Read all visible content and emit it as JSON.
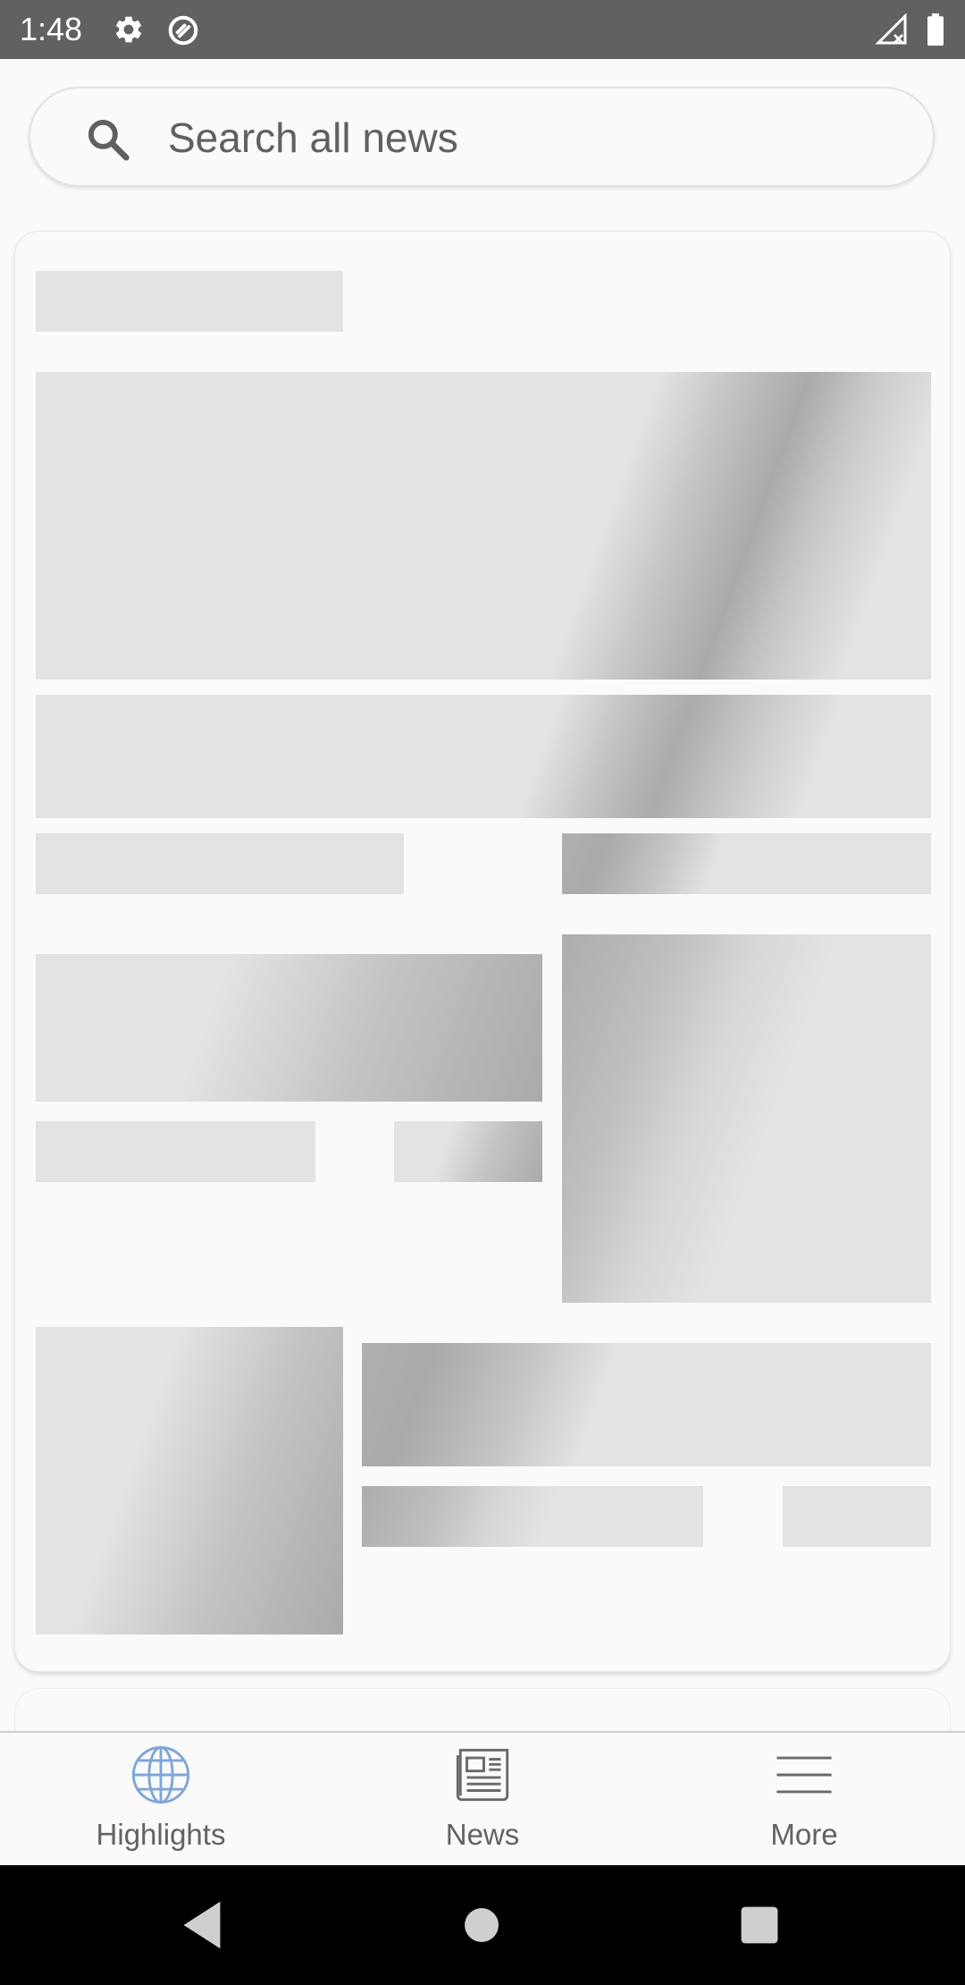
{
  "status_bar": {
    "time": "1:48",
    "icons": [
      "gear-icon",
      "data-saver-icon",
      "signal-icon",
      "battery-icon"
    ]
  },
  "search": {
    "placeholder": "Search all news"
  },
  "bottom_nav": {
    "items": [
      {
        "label": "Highlights",
        "icon": "globe-icon",
        "active": true
      },
      {
        "label": "News",
        "icon": "newspaper-icon",
        "active": false
      },
      {
        "label": "More",
        "icon": "menu-icon",
        "active": false
      }
    ]
  },
  "system_nav": {
    "buttons": [
      "back-icon",
      "home-icon",
      "recents-icon"
    ]
  },
  "colors": {
    "status_bar": "#616161",
    "skeleton": "#e3e3e3",
    "shimmer": "#aaaaaa",
    "active_icon": "#7ea6d8",
    "nav_text": "#5f6368",
    "system_nav": "#000000"
  }
}
